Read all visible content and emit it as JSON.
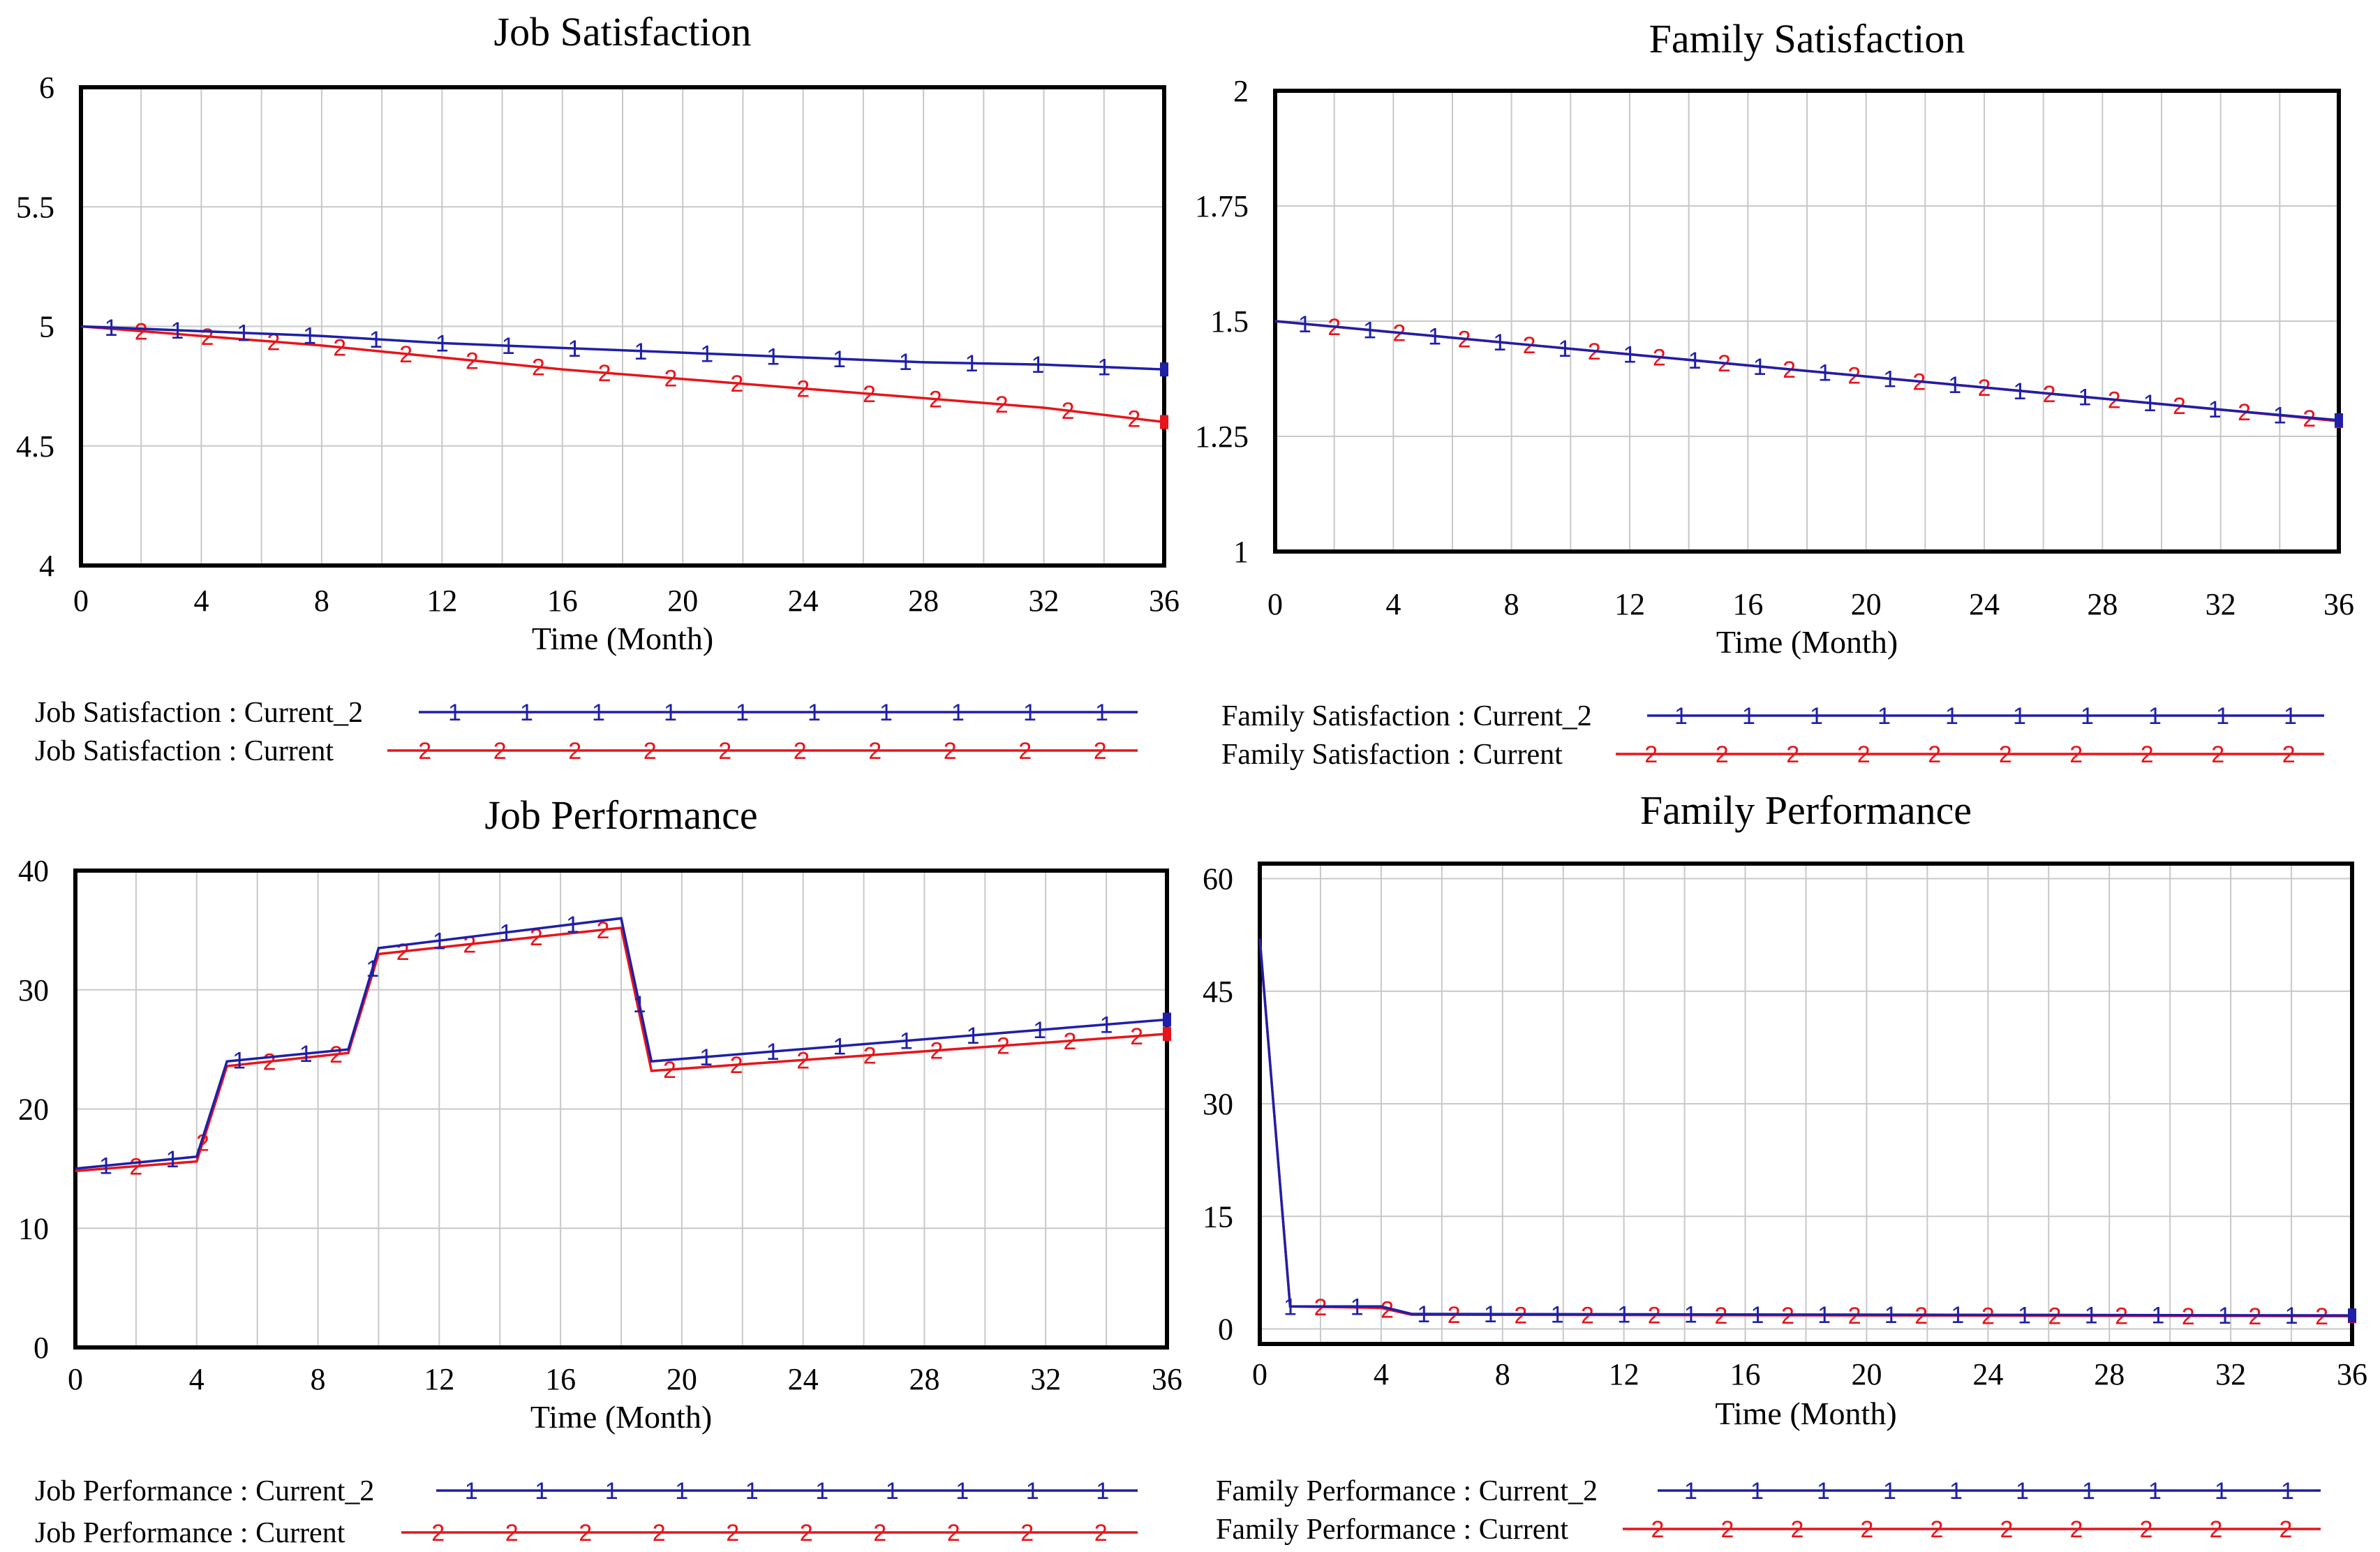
{
  "chart_data": [
    {
      "type": "line",
      "title": "Job Satisfaction",
      "xlabel": "Time (Month)",
      "xlim": [
        0,
        36
      ],
      "ylim": [
        4,
        6
      ],
      "xticks": [
        "0",
        "4",
        "8",
        "12",
        "16",
        "20",
        "24",
        "28",
        "32",
        "36"
      ],
      "yticks": [
        "4",
        "4.5",
        "5",
        "5.5",
        "6"
      ],
      "series": [
        {
          "name": "Current_2",
          "legend": "Job Satisfaction : Current_2",
          "marker": "1",
          "color": "#1f1fa8",
          "x": [
            0,
            4,
            8,
            12,
            16,
            20,
            24,
            28,
            32,
            36
          ],
          "y": [
            5.0,
            4.98,
            4.96,
            4.93,
            4.91,
            4.89,
            4.87,
            4.85,
            4.84,
            4.82
          ]
        },
        {
          "name": "Current",
          "legend": "Job Satisfaction : Current",
          "marker": "2",
          "color": "#e8141a",
          "x": [
            0,
            4,
            8,
            12,
            16,
            20,
            24,
            28,
            32,
            36
          ],
          "y": [
            5.0,
            4.96,
            4.92,
            4.87,
            4.82,
            4.78,
            4.74,
            4.7,
            4.66,
            4.6
          ]
        }
      ]
    },
    {
      "type": "line",
      "title": "Family Satisfaction",
      "xlabel": "Time (Month)",
      "xlim": [
        0,
        36
      ],
      "ylim": [
        1,
        2
      ],
      "xticks": [
        "0",
        "4",
        "8",
        "12",
        "16",
        "20",
        "24",
        "28",
        "32",
        "36"
      ],
      "yticks": [
        "1",
        "1.25",
        "1.5",
        "1.75",
        "2"
      ],
      "series": [
        {
          "name": "Current_2",
          "legend": "Family Satisfaction : Current_2",
          "marker": "1",
          "color": "#1f1fa8",
          "x": [
            0,
            4,
            8,
            12,
            16,
            20,
            24,
            28,
            32,
            36
          ],
          "y": [
            1.5,
            1.476,
            1.452,
            1.428,
            1.404,
            1.38,
            1.356,
            1.332,
            1.308,
            1.285
          ]
        },
        {
          "name": "Current",
          "legend": "Family Satisfaction : Current",
          "marker": "2",
          "color": "#e8141a",
          "x": [
            0,
            4,
            8,
            12,
            16,
            20,
            24,
            28,
            32,
            36
          ],
          "y": [
            1.5,
            1.476,
            1.452,
            1.428,
            1.404,
            1.38,
            1.356,
            1.332,
            1.308,
            1.283
          ]
        }
      ]
    },
    {
      "type": "line",
      "title": "Job Performance",
      "xlabel": "Time (Month)",
      "xlim": [
        0,
        36
      ],
      "ylim": [
        0,
        40
      ],
      "xticks": [
        "0",
        "4",
        "8",
        "12",
        "16",
        "20",
        "24",
        "28",
        "32",
        "36"
      ],
      "yticks": [
        "0",
        "10",
        "20",
        "30",
        "40"
      ],
      "series": [
        {
          "name": "Current_2",
          "legend": "Job Performance : Current_2",
          "marker": "1",
          "color": "#1f1fa8",
          "x": [
            0,
            4,
            5,
            9,
            10,
            18,
            19,
            36
          ],
          "y": [
            15,
            16,
            24,
            25,
            33.5,
            36,
            24,
            27.5
          ]
        },
        {
          "name": "Current",
          "legend": "Job Performance : Current",
          "marker": "2",
          "color": "#e8141a",
          "x": [
            0,
            4,
            5,
            9,
            10,
            18,
            19,
            36
          ],
          "y": [
            14.8,
            15.6,
            23.6,
            24.7,
            33,
            35.2,
            23.2,
            26.3
          ]
        }
      ]
    },
    {
      "type": "line",
      "title": "Family Performance",
      "xlabel": "Time (Month)",
      "xlim": [
        0,
        36
      ],
      "ylim": [
        -2,
        62
      ],
      "xticks": [
        "0",
        "4",
        "8",
        "12",
        "16",
        "20",
        "24",
        "28",
        "32",
        "36"
      ],
      "yticks": [
        "0",
        "15",
        "30",
        "45",
        "60"
      ],
      "series": [
        {
          "name": "Current_2",
          "legend": "Family Performance : Current_2",
          "marker": "1",
          "color": "#1f1fa8",
          "x": [
            0,
            1,
            4,
            5,
            36
          ],
          "y": [
            52,
            3,
            3,
            2,
            1.8
          ]
        },
        {
          "name": "Current",
          "legend": "Family Performance : Current",
          "marker": "2",
          "color": "#e8141a",
          "x": [
            0,
            1,
            4,
            5,
            36
          ],
          "y": [
            52,
            3,
            2.8,
            1.9,
            1.7
          ]
        }
      ]
    }
  ]
}
